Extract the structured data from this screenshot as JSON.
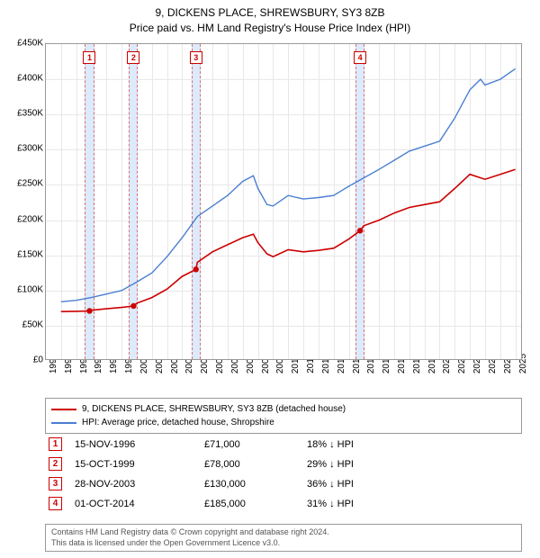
{
  "title": {
    "line1": "9, DICKENS PLACE, SHREWSBURY, SY3 8ZB",
    "line2": "Price paid vs. HM Land Registry's House Price Index (HPI)"
  },
  "chart": {
    "type": "line",
    "background_color": "#ffffff",
    "grid_color": "#e8e8e8",
    "border_color": "#999999",
    "x_range": [
      1994,
      2025.5
    ],
    "y_range": [
      0,
      450000
    ],
    "y_ticks": [
      0,
      50000,
      100000,
      150000,
      200000,
      250000,
      300000,
      350000,
      400000,
      450000
    ],
    "y_tick_labels": [
      "£0",
      "£50K",
      "£100K",
      "£150K",
      "£200K",
      "£250K",
      "£300K",
      "£350K",
      "£400K",
      "£450K"
    ],
    "x_ticks": [
      1994,
      1995,
      1996,
      1997,
      1998,
      1999,
      2000,
      2001,
      2002,
      2003,
      2004,
      2005,
      2006,
      2007,
      2008,
      2009,
      2010,
      2011,
      2012,
      2013,
      2014,
      2015,
      2016,
      2017,
      2018,
      2019,
      2020,
      2021,
      2022,
      2023,
      2024,
      2025
    ],
    "label_fontsize": 10,
    "series": {
      "hpi": {
        "color": "#4a7fd1",
        "width": 1.4,
        "points": [
          [
            1995,
            84000
          ],
          [
            1996,
            86000
          ],
          [
            1997,
            90000
          ],
          [
            1998,
            95000
          ],
          [
            1999,
            100000
          ],
          [
            2000,
            112000
          ],
          [
            2001,
            125000
          ],
          [
            2002,
            148000
          ],
          [
            2003,
            175000
          ],
          [
            2004,
            205000
          ],
          [
            2005,
            220000
          ],
          [
            2006,
            235000
          ],
          [
            2007,
            255000
          ],
          [
            2007.7,
            263000
          ],
          [
            2008,
            245000
          ],
          [
            2008.6,
            222000
          ],
          [
            2009,
            220000
          ],
          [
            2010,
            235000
          ],
          [
            2011,
            230000
          ],
          [
            2012,
            232000
          ],
          [
            2013,
            235000
          ],
          [
            2014,
            248000
          ],
          [
            2015,
            260000
          ],
          [
            2016,
            272000
          ],
          [
            2017,
            285000
          ],
          [
            2018,
            298000
          ],
          [
            2019,
            305000
          ],
          [
            2020,
            312000
          ],
          [
            2021,
            345000
          ],
          [
            2022,
            385000
          ],
          [
            2022.7,
            400000
          ],
          [
            2023,
            392000
          ],
          [
            2024,
            400000
          ],
          [
            2025,
            415000
          ]
        ]
      },
      "price_paid": {
        "color": "#cc0000",
        "width": 1.6,
        "points": [
          [
            1995,
            70000
          ],
          [
            1996,
            70500
          ],
          [
            1996.88,
            71000
          ],
          [
            1997,
            72000
          ],
          [
            1998,
            74000
          ],
          [
            1999,
            76000
          ],
          [
            1999.79,
            78000
          ],
          [
            2000,
            82000
          ],
          [
            2001,
            90000
          ],
          [
            2002,
            102000
          ],
          [
            2003,
            120000
          ],
          [
            2003.91,
            130000
          ],
          [
            2004,
            140000
          ],
          [
            2005,
            155000
          ],
          [
            2006,
            165000
          ],
          [
            2007,
            175000
          ],
          [
            2007.7,
            180000
          ],
          [
            2008,
            168000
          ],
          [
            2008.6,
            152000
          ],
          [
            2009,
            148000
          ],
          [
            2010,
            158000
          ],
          [
            2011,
            155000
          ],
          [
            2012,
            157000
          ],
          [
            2013,
            160000
          ],
          [
            2014,
            173000
          ],
          [
            2014.75,
            185000
          ],
          [
            2015,
            192000
          ],
          [
            2016,
            200000
          ],
          [
            2017,
            210000
          ],
          [
            2018,
            218000
          ],
          [
            2019,
            222000
          ],
          [
            2020,
            226000
          ],
          [
            2021,
            245000
          ],
          [
            2022,
            265000
          ],
          [
            2023,
            258000
          ],
          [
            2024,
            265000
          ],
          [
            2025,
            272000
          ]
        ]
      }
    },
    "sale_markers": [
      {
        "x": 1996.88,
        "y": 71000
      },
      {
        "x": 1999.79,
        "y": 78000
      },
      {
        "x": 2003.91,
        "y": 130000
      },
      {
        "x": 2014.75,
        "y": 185000
      }
    ],
    "event_bands": [
      {
        "num": "1",
        "x": 1996.88,
        "width_years": 0.6
      },
      {
        "num": "2",
        "x": 1999.79,
        "width_years": 0.6
      },
      {
        "num": "3",
        "x": 2003.91,
        "width_years": 0.6
      },
      {
        "num": "4",
        "x": 2014.75,
        "width_years": 0.6
      }
    ]
  },
  "legend": {
    "items": [
      {
        "color": "#cc0000",
        "label": "9, DICKENS PLACE, SHREWSBURY, SY3 8ZB (detached house)"
      },
      {
        "color": "#4a7fd1",
        "label": "HPI: Average price, detached house, Shropshire"
      }
    ]
  },
  "events": [
    {
      "num": "1",
      "date": "15-NOV-1996",
      "price": "£71,000",
      "diff": "18% ↓ HPI"
    },
    {
      "num": "2",
      "date": "15-OCT-1999",
      "price": "£78,000",
      "diff": "29% ↓ HPI"
    },
    {
      "num": "3",
      "date": "28-NOV-2003",
      "price": "£130,000",
      "diff": "36% ↓ HPI"
    },
    {
      "num": "4",
      "date": "01-OCT-2014",
      "price": "£185,000",
      "diff": "31% ↓ HPI"
    }
  ],
  "footer": {
    "line1": "Contains HM Land Registry data © Crown copyright and database right 2024.",
    "line2": "This data is licensed under the Open Government Licence v3.0."
  }
}
